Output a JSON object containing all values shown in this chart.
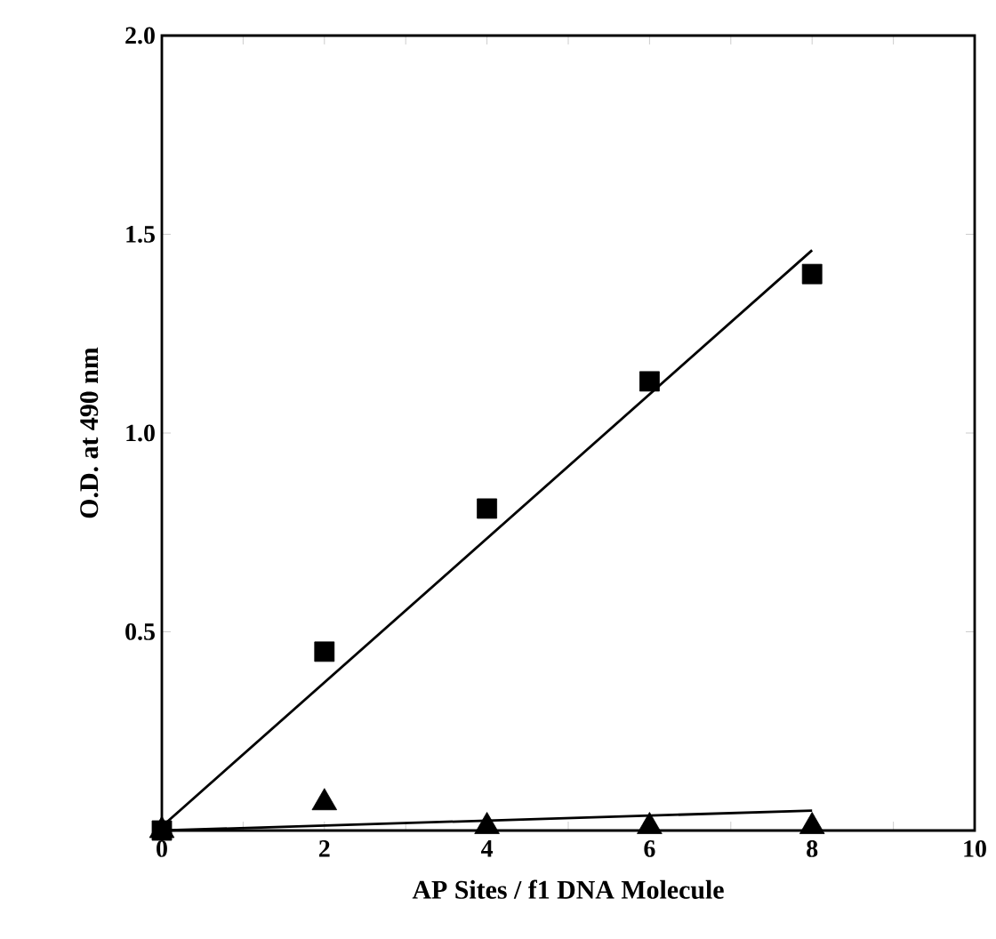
{
  "chart_data": {
    "type": "scatter",
    "xlabel": "AP Sites / f1 DNA Molecule",
    "ylabel": "O.D. at 490 nm",
    "xlim": [
      0,
      10
    ],
    "ylim": [
      0,
      2.0
    ],
    "xticks": [
      0,
      {
        "value": 1,
        "label": null
      },
      2,
      {
        "value": 3,
        "label": null
      },
      4,
      {
        "value": 5,
        "label": null
      },
      6,
      {
        "value": 7,
        "label": null
      },
      8,
      {
        "value": 9,
        "label": null
      },
      10
    ],
    "yticks": [
      {
        "value": 0,
        "label": null
      },
      {
        "value": 0.5,
        "label": "0.5"
      },
      {
        "value": 1.0,
        "label": "1.0"
      },
      {
        "value": 1.5,
        "label": "1.5"
      },
      {
        "value": 2.0,
        "label": "2.0"
      }
    ],
    "series": [
      {
        "marker": "square",
        "color": "#000000",
        "x": [
          0,
          2,
          4,
          6,
          8
        ],
        "values": [
          0,
          0.45,
          0.81,
          1.13,
          1.4
        ]
      },
      {
        "marker": "triangle",
        "color": "#000000",
        "x": [
          0,
          2,
          4,
          6,
          8
        ],
        "values": [
          0,
          0.07,
          0.01,
          0.01,
          0.01
        ]
      },
      {
        "type": "line",
        "marker": "none",
        "color": "#000000",
        "x": [
          0,
          8
        ],
        "values": [
          0.01,
          1.46
        ]
      },
      {
        "type": "line",
        "marker": "none",
        "color": "#000000",
        "x": [
          0,
          8
        ],
        "values": [
          0.0,
          0.05
        ]
      }
    ]
  }
}
